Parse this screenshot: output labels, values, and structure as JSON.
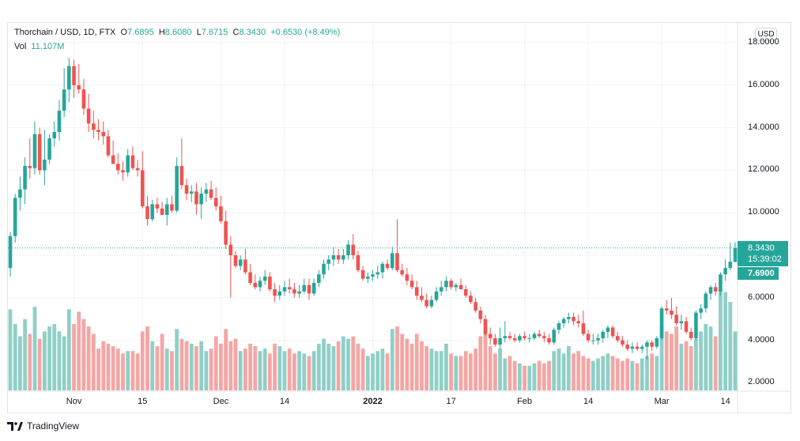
{
  "header": {
    "symbol": "Thorchain / USD, 1D, FTX",
    "open_label": "O",
    "open_value": "7.6895",
    "high_label": "H",
    "high_value": "8.6080",
    "low_label": "L",
    "low_value": "7.6715",
    "close_label": "C",
    "close_value": "8.3430",
    "change": "+0.6530 (+8.49%)",
    "vol_label": "Vol",
    "vol_value": "11.107M"
  },
  "currency_button": "USD",
  "price_tag": {
    "price": "8.3430",
    "countdown": "15:39:02"
  },
  "open_tag": "7.6900",
  "footer": {
    "brand": "TradingView"
  },
  "colors": {
    "up": "#26a69a",
    "down": "#ef5350",
    "vol_up": "#8fcfc7",
    "vol_down": "#f4a6a4",
    "grid": "#f0f3fa"
  },
  "chart_data": {
    "type": "candlestick",
    "ylim": [
      1.5,
      18.5
    ],
    "yticks": [
      "18.0000",
      "16.0000",
      "14.0000",
      "12.0000",
      "10.0000",
      "6.0000",
      "4.0000",
      "2.0000"
    ],
    "ytick_values": [
      18,
      16,
      14,
      12,
      10,
      6,
      4,
      2
    ],
    "xticks": [
      {
        "label": "Nov",
        "day": 13
      },
      {
        "label": "15",
        "day": 27
      },
      {
        "label": "Dec",
        "day": 43
      },
      {
        "label": "14",
        "day": 56
      },
      {
        "label": "2022",
        "day": 74,
        "bold": true
      },
      {
        "label": "17",
        "day": 90
      },
      {
        "label": "Feb",
        "day": 105
      },
      {
        "label": "14",
        "day": 118
      },
      {
        "label": "Mar",
        "day": 133
      },
      {
        "label": "14",
        "day": 146
      }
    ],
    "last_price": 8.343,
    "candles": [
      [
        7.4,
        9.1,
        7.0,
        8.9,
        3.3
      ],
      [
        8.9,
        10.9,
        8.6,
        10.7,
        2.7
      ],
      [
        10.7,
        11.7,
        10.1,
        11.1,
        2.2
      ],
      [
        11.1,
        12.6,
        10.4,
        12.2,
        2.9
      ],
      [
        12.2,
        13.5,
        11.6,
        12.1,
        2.3
      ],
      [
        12.1,
        14.3,
        11.8,
        13.7,
        3.4
      ],
      [
        13.7,
        14.0,
        11.8,
        12.0,
        2.1
      ],
      [
        12.0,
        13.9,
        11.3,
        12.5,
        2.4
      ],
      [
        12.5,
        13.7,
        12.3,
        13.5,
        2.6
      ],
      [
        13.5,
        14.3,
        13.1,
        13.8,
        2.7
      ],
      [
        13.8,
        15.3,
        13.4,
        14.8,
        2.4
      ],
      [
        14.8,
        16.8,
        14.5,
        15.8,
        2.2
      ],
      [
        15.8,
        17.3,
        15.2,
        16.9,
        3.3
      ],
      [
        16.9,
        17.2,
        15.4,
        16.0,
        2.7
      ],
      [
        16.0,
        17.0,
        15.6,
        15.8,
        3.2
      ],
      [
        15.8,
        16.3,
        14.6,
        14.9,
        2.9
      ],
      [
        14.9,
        15.6,
        13.8,
        14.2,
        2.6
      ],
      [
        14.2,
        14.8,
        13.5,
        13.9,
        2.3
      ],
      [
        13.9,
        14.4,
        13.4,
        13.8,
        1.7
      ],
      [
        13.8,
        14.3,
        13.2,
        13.6,
        2.0
      ],
      [
        13.6,
        13.9,
        12.6,
        12.7,
        1.9
      ],
      [
        12.7,
        13.4,
        12.3,
        12.3,
        1.8
      ],
      [
        12.3,
        12.8,
        11.8,
        12.0,
        1.7
      ],
      [
        12.0,
        12.4,
        11.5,
        11.9,
        1.5
      ],
      [
        11.9,
        13.0,
        11.7,
        12.7,
        1.6
      ],
      [
        12.7,
        13.1,
        12.0,
        12.1,
        1.6
      ],
      [
        12.1,
        12.5,
        11.7,
        12.0,
        1.5
      ],
      [
        12.0,
        12.9,
        10.2,
        10.3,
        2.4
      ],
      [
        10.3,
        10.8,
        9.4,
        9.7,
        2.6
      ],
      [
        9.7,
        10.6,
        9.6,
        10.4,
        2.0
      ],
      [
        10.4,
        10.7,
        10.0,
        10.2,
        1.8
      ],
      [
        10.2,
        10.5,
        9.9,
        9.9,
        2.3
      ],
      [
        9.9,
        10.7,
        9.4,
        10.4,
        1.7
      ],
      [
        10.4,
        10.8,
        10.0,
        10.1,
        1.6
      ],
      [
        10.1,
        12.6,
        10.0,
        12.2,
        2.5
      ],
      [
        12.2,
        13.5,
        11.1,
        11.3,
        2.1
      ],
      [
        11.3,
        11.6,
        10.6,
        10.9,
        2.0
      ],
      [
        10.9,
        11.3,
        10.5,
        11.0,
        1.9
      ],
      [
        11.0,
        11.4,
        9.9,
        10.4,
        1.8
      ],
      [
        10.4,
        11.2,
        9.7,
        10.9,
        2.0
      ],
      [
        10.9,
        11.4,
        10.5,
        11.1,
        1.6
      ],
      [
        11.1,
        11.5,
        10.6,
        10.7,
        1.7
      ],
      [
        10.7,
        11.2,
        10.1,
        10.3,
        2.2
      ],
      [
        10.3,
        10.8,
        9.5,
        9.6,
        1.9
      ],
      [
        9.6,
        10.1,
        8.3,
        8.5,
        2.5
      ],
      [
        8.5,
        8.9,
        6.0,
        8.0,
        2.0
      ],
      [
        8.0,
        8.2,
        7.4,
        7.5,
        2.1
      ],
      [
        7.5,
        8.0,
        7.3,
        7.8,
        1.6
      ],
      [
        7.8,
        8.3,
        7.1,
        7.2,
        1.7
      ],
      [
        7.2,
        7.6,
        6.6,
        6.7,
        1.9
      ],
      [
        6.7,
        7.1,
        6.4,
        6.5,
        1.8
      ],
      [
        6.5,
        7.0,
        6.3,
        6.8,
        1.6
      ],
      [
        6.8,
        7.3,
        6.6,
        7.0,
        1.7
      ],
      [
        7.0,
        7.2,
        6.3,
        6.4,
        1.5
      ],
      [
        6.4,
        6.7,
        5.8,
        6.1,
        1.9
      ],
      [
        6.1,
        6.6,
        5.9,
        6.3,
        1.8
      ],
      [
        6.3,
        6.8,
        6.1,
        6.5,
        1.6
      ],
      [
        6.5,
        6.9,
        6.2,
        6.4,
        1.7
      ],
      [
        6.4,
        6.7,
        6.0,
        6.2,
        1.5
      ],
      [
        6.2,
        6.6,
        6.0,
        6.3,
        1.6
      ],
      [
        6.3,
        6.9,
        6.2,
        6.6,
        1.5
      ],
      [
        6.6,
        6.9,
        5.9,
        6.2,
        1.4
      ],
      [
        6.2,
        6.9,
        6.1,
        6.7,
        1.6
      ],
      [
        6.7,
        7.3,
        6.5,
        7.1,
        1.9
      ],
      [
        7.1,
        7.8,
        6.9,
        7.6,
        2.1
      ],
      [
        7.6,
        8.0,
        7.3,
        7.8,
        1.9
      ],
      [
        7.8,
        8.4,
        7.5,
        8.0,
        1.8
      ],
      [
        8.0,
        8.3,
        7.6,
        7.8,
        2.0
      ],
      [
        7.8,
        8.3,
        7.6,
        8.0,
        2.2
      ],
      [
        8.0,
        8.7,
        7.8,
        8.5,
        2.1
      ],
      [
        8.5,
        9.0,
        7.8,
        8.0,
        2.2
      ],
      [
        8.0,
        8.2,
        7.2,
        7.3,
        1.9
      ],
      [
        7.3,
        7.5,
        6.8,
        6.9,
        1.7
      ],
      [
        6.9,
        7.2,
        6.7,
        7.0,
        1.4
      ],
      [
        7.0,
        7.3,
        6.8,
        7.1,
        1.5
      ],
      [
        7.1,
        7.5,
        6.9,
        7.2,
        1.6
      ],
      [
        7.2,
        7.7,
        6.9,
        7.6,
        1.7
      ],
      [
        7.6,
        7.8,
        7.3,
        7.4,
        1.5
      ],
      [
        7.4,
        8.4,
        7.3,
        8.1,
        2.5
      ],
      [
        8.1,
        9.7,
        7.2,
        7.3,
        2.6
      ],
      [
        7.3,
        7.6,
        7.0,
        7.1,
        2.3
      ],
      [
        7.1,
        7.4,
        6.6,
        6.8,
        2.1
      ],
      [
        6.8,
        7.1,
        6.4,
        6.5,
        1.9
      ],
      [
        6.5,
        6.8,
        5.9,
        6.1,
        2.3
      ],
      [
        6.1,
        6.5,
        5.8,
        5.9,
        2.0
      ],
      [
        5.9,
        6.2,
        5.5,
        5.6,
        1.8
      ],
      [
        5.6,
        6.1,
        5.5,
        5.9,
        1.7
      ],
      [
        5.9,
        6.5,
        5.8,
        6.3,
        1.6
      ],
      [
        6.3,
        6.8,
        6.1,
        6.5,
        1.6
      ],
      [
        6.5,
        7.0,
        6.3,
        6.8,
        1.9
      ],
      [
        6.8,
        6.9,
        6.4,
        6.5,
        1.5
      ],
      [
        6.5,
        6.7,
        6.3,
        6.6,
        1.4
      ],
      [
        6.6,
        6.9,
        6.4,
        6.4,
        1.4
      ],
      [
        6.4,
        6.6,
        6.0,
        6.1,
        1.6
      ],
      [
        6.1,
        6.3,
        5.7,
        5.8,
        1.5
      ],
      [
        5.8,
        6.0,
        5.3,
        5.4,
        1.7
      ],
      [
        5.4,
        5.6,
        4.8,
        5.0,
        2.2
      ],
      [
        5.0,
        5.2,
        4.2,
        4.3,
        2.5
      ],
      [
        4.3,
        4.6,
        3.8,
        4.1,
        1.8
      ],
      [
        4.1,
        4.3,
        3.7,
        3.8,
        1.5
      ],
      [
        3.8,
        4.6,
        3.6,
        4.1,
        1.7
      ],
      [
        4.1,
        4.9,
        3.9,
        4.2,
        1.3
      ],
      [
        4.2,
        4.4,
        4.0,
        4.1,
        1.4
      ],
      [
        4.1,
        4.3,
        3.9,
        4.0,
        1.2
      ],
      [
        4.0,
        4.3,
        3.9,
        4.2,
        1.1
      ],
      [
        4.2,
        4.4,
        4.0,
        4.1,
        1.0
      ],
      [
        4.1,
        4.3,
        3.9,
        4.1,
        1.0
      ],
      [
        4.1,
        4.4,
        4.0,
        4.3,
        1.1
      ],
      [
        4.3,
        4.5,
        4.1,
        4.2,
        1.2
      ],
      [
        4.2,
        4.4,
        3.9,
        4.1,
        1.1
      ],
      [
        4.1,
        4.3,
        3.8,
        3.9,
        1.2
      ],
      [
        3.9,
        4.6,
        3.8,
        4.5,
        1.6
      ],
      [
        4.5,
        4.9,
        4.3,
        4.8,
        1.7
      ],
      [
        4.8,
        5.1,
        4.6,
        5.0,
        1.5
      ],
      [
        5.0,
        5.3,
        4.8,
        5.1,
        1.8
      ],
      [
        5.1,
        5.3,
        4.7,
        4.9,
        1.5
      ],
      [
        4.9,
        5.2,
        4.6,
        4.8,
        1.6
      ],
      [
        4.8,
        5.4,
        4.2,
        4.3,
        1.4
      ],
      [
        4.3,
        4.5,
        3.9,
        4.0,
        1.3
      ],
      [
        4.0,
        4.3,
        3.8,
        4.0,
        1.2
      ],
      [
        4.0,
        4.3,
        3.8,
        4.1,
        1.3
      ],
      [
        4.1,
        4.5,
        3.9,
        4.4,
        1.4
      ],
      [
        4.4,
        4.7,
        4.1,
        4.6,
        1.5
      ],
      [
        4.6,
        4.7,
        4.1,
        4.2,
        1.4
      ],
      [
        4.2,
        4.4,
        3.9,
        4.0,
        1.3
      ],
      [
        4.0,
        4.2,
        3.7,
        3.8,
        1.2
      ],
      [
        3.8,
        4.0,
        3.5,
        3.6,
        1.3
      ],
      [
        3.6,
        3.9,
        3.4,
        3.7,
        1.2
      ],
      [
        3.7,
        3.9,
        3.5,
        3.6,
        1.1
      ],
      [
        3.6,
        3.8,
        3.4,
        3.7,
        1.3
      ],
      [
        3.7,
        4.0,
        3.1,
        3.9,
        1.4
      ],
      [
        3.9,
        4.0,
        3.5,
        3.7,
        1.5
      ],
      [
        3.7,
        4.2,
        3.6,
        4.1,
        1.4
      ],
      [
        4.1,
        5.6,
        4.0,
        5.5,
        2.6
      ],
      [
        5.5,
        5.9,
        5.2,
        5.4,
        2.4
      ],
      [
        5.4,
        6.0,
        5.0,
        5.2,
        2.3
      ],
      [
        5.2,
        5.6,
        4.7,
        4.8,
        2.6
      ],
      [
        4.8,
        5.2,
        4.5,
        4.9,
        1.9
      ],
      [
        4.9,
        5.1,
        4.3,
        4.4,
        2.0
      ],
      [
        4.4,
        4.6,
        4.0,
        4.1,
        1.8
      ],
      [
        4.1,
        5.4,
        4.0,
        5.3,
        2.1
      ],
      [
        5.3,
        5.7,
        5.0,
        5.5,
        2.4
      ],
      [
        5.5,
        6.3,
        5.3,
        6.2,
        2.7
      ],
      [
        6.2,
        6.6,
        5.9,
        6.5,
        2.6
      ],
      [
        6.5,
        6.7,
        6.1,
        6.3,
        2.2
      ],
      [
        6.3,
        7.2,
        6.1,
        7.1,
        4.1
      ],
      [
        7.1,
        7.8,
        6.8,
        7.4,
        4.0
      ],
      [
        7.4,
        8.6,
        7.3,
        7.7,
        3.6
      ],
      [
        7.69,
        8.61,
        7.67,
        8.34,
        2.4
      ]
    ]
  }
}
